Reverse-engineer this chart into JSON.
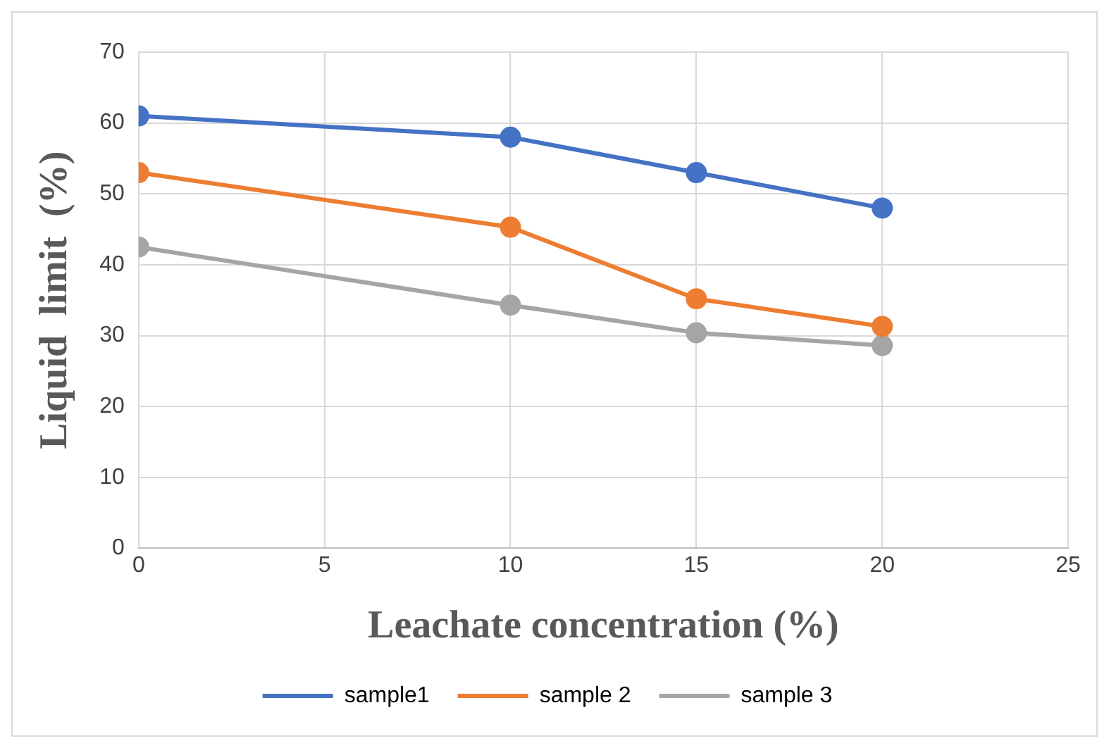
{
  "chart_data": {
    "type": "line",
    "xlabel": "Leachate concentration (%)",
    "ylabel": "Liquid  limit  (%)",
    "x": [
      0,
      10,
      15,
      20
    ],
    "series": [
      {
        "name": "sample1",
        "color": "#4472c4",
        "values": [
          61,
          58,
          53,
          48
        ]
      },
      {
        "name": "sample 2",
        "color": "#ed7d31",
        "values": [
          53,
          45.3,
          35.2,
          31.3
        ]
      },
      {
        "name": "sample 3",
        "color": "#a5a5a5",
        "values": [
          42.5,
          34.3,
          30.4,
          28.6
        ]
      }
    ],
    "xlim": [
      0,
      25
    ],
    "xticks": [
      0,
      5,
      10,
      15,
      20,
      25
    ],
    "ylim": [
      0,
      70
    ],
    "yticks": [
      0,
      10,
      20,
      30,
      40,
      50,
      60,
      70
    ],
    "grid": true,
    "legend": "bottom",
    "marker": "circle",
    "line_style": "solid"
  }
}
